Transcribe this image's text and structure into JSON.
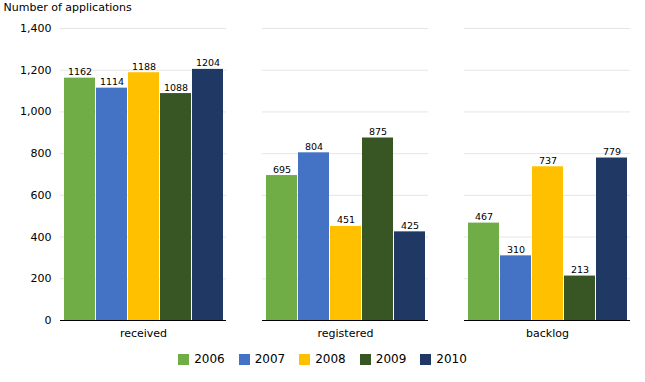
{
  "chart_data": {
    "type": "bar",
    "categories": [
      "received",
      "registered",
      "backlog"
    ],
    "series": [
      {
        "name": "2006",
        "color": "#70AD47",
        "values": [
          1162,
          695,
          467
        ]
      },
      {
        "name": "2007",
        "color": "#4472C4",
        "values": [
          1114,
          804,
          310
        ]
      },
      {
        "name": "2008",
        "color": "#FFC000",
        "values": [
          1188,
          451,
          737
        ]
      },
      {
        "name": "2009",
        "color": "#375623",
        "values": [
          1088,
          875,
          213
        ]
      },
      {
        "name": "2010",
        "color": "#203864",
        "values": [
          1204,
          425,
          779
        ]
      }
    ],
    "ylabel": "Number of applications",
    "ylim": [
      0,
      1400
    ],
    "yticks": [
      0,
      200,
      400,
      600,
      800,
      1000,
      1200,
      1400
    ],
    "grid": true,
    "legend": "bottom",
    "data_labels": true
  }
}
